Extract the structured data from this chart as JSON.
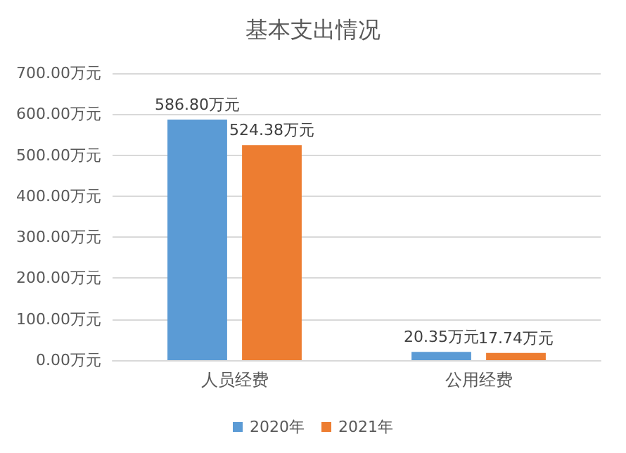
{
  "chart_data": {
    "type": "bar",
    "title": "基本支出情况",
    "categories": [
      "人员经费",
      "公用经费"
    ],
    "series": [
      {
        "name": "2020年",
        "color": "#5b9bd5",
        "values": [
          586.8,
          20.35
        ],
        "value_labels": [
          "586.80万元",
          "20.35万元"
        ]
      },
      {
        "name": "2021年",
        "color": "#ed7d31",
        "values": [
          524.38,
          17.74
        ],
        "value_labels": [
          "524.38万元",
          "17.74万元"
        ]
      }
    ],
    "ylim": [
      0,
      700
    ],
    "yticks": [
      {
        "value": 0,
        "label": "0.00万元"
      },
      {
        "value": 100,
        "label": "100.00万元"
      },
      {
        "value": 200,
        "label": "200.00万元"
      },
      {
        "value": 300,
        "label": "300.00万元"
      },
      {
        "value": 400,
        "label": "400.00万元"
      },
      {
        "value": 500,
        "label": "500.00万元"
      },
      {
        "value": 600,
        "label": "600.00万元"
      },
      {
        "value": 700,
        "label": "700.00万元"
      }
    ],
    "grid": "y",
    "legend": "bottom"
  }
}
